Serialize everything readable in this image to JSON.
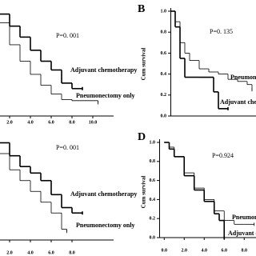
{
  "chart_data": [
    {
      "type": "line",
      "drawstyle": "steps-post",
      "annotations": [
        {
          "text": "P=0. 001"
        }
      ],
      "xlim": [
        0,
        12
      ],
      "ylim": [
        0,
        1
      ],
      "xticks": [
        {
          "value": 2,
          "label": "2.0"
        },
        {
          "value": 4,
          "label": "4.0"
        },
        {
          "value": 6,
          "label": "6.0"
        },
        {
          "value": 8,
          "label": "8.0"
        },
        {
          "value": 10,
          "label": "10.0"
        }
      ],
      "series": [
        {
          "name": "Adjuvant chemotherapy",
          "color": "#000000",
          "width": 1.6,
          "x": [
            0,
            1,
            2,
            3,
            4,
            5,
            6,
            7,
            8,
            9
          ],
          "values": [
            1,
            0.93,
            0.82,
            0.72,
            0.6,
            0.5,
            0.42,
            0.3,
            0.25,
            0.25
          ]
        },
        {
          "name": "Pneumonectomy only",
          "color": "#000000",
          "width": 0.8,
          "x": [
            0,
            1,
            2,
            3,
            4,
            5,
            6,
            7,
            8,
            10.5
          ],
          "values": [
            1,
            0.85,
            0.65,
            0.5,
            0.38,
            0.28,
            0.2,
            0.15,
            0.14,
            0.12
          ]
        }
      ]
    },
    {
      "type": "line",
      "drawstyle": "steps-post",
      "panel_label": "B",
      "ylabel": "Cum survival",
      "annotations": [
        {
          "text": "P=0. 135"
        }
      ],
      "xlim": [
        0,
        10
      ],
      "ylim": [
        0,
        1
      ],
      "yticks": [
        {
          "value": 0,
          "label": "0.0"
        },
        {
          "value": 0.2,
          "label": "0.2"
        },
        {
          "value": 0.4,
          "label": "0.4"
        },
        {
          "value": 0.6,
          "label": "0.6"
        },
        {
          "value": 0.8,
          "label": "0.8"
        },
        {
          "value": 1,
          "label": "1.0"
        }
      ],
      "series": [
        {
          "name": "Pneumonect",
          "color": "#000000",
          "width": 0.8,
          "x": [
            0,
            0.5,
            1,
            1.5,
            2,
            3,
            4,
            5,
            6,
            7,
            8,
            8.5
          ],
          "values": [
            1,
            0.9,
            0.7,
            0.6,
            0.53,
            0.45,
            0.42,
            0.4,
            0.35,
            0.33,
            0.3,
            0.25
          ]
        },
        {
          "name": "Adjuvant chemothe",
          "color": "#000000",
          "width": 1.6,
          "x": [
            0,
            0.5,
            1,
            1.5,
            2,
            3,
            4.5,
            5,
            6
          ],
          "values": [
            1,
            0.85,
            0.55,
            0.37,
            0.37,
            0.37,
            0.23,
            0.07,
            0.07
          ]
        }
      ]
    },
    {
      "type": "line",
      "drawstyle": "steps-post",
      "annotations": [
        {
          "text": "P=0. 001"
        }
      ],
      "xlim": [
        0,
        12
      ],
      "ylim": [
        0,
        1
      ],
      "xticks": [
        {
          "value": 2,
          "label": "2.0"
        },
        {
          "value": 4,
          "label": "4.0"
        },
        {
          "value": 6,
          "label": "6.0"
        },
        {
          "value": 8,
          "label": "8.0"
        }
      ],
      "series": [
        {
          "name": "Adjuvant chemotherapy",
          "color": "#000000",
          "width": 1.6,
          "x": [
            0,
            1,
            2,
            3,
            4,
            5,
            6,
            7,
            8,
            9
          ],
          "values": [
            1,
            0.9,
            0.78,
            0.68,
            0.62,
            0.55,
            0.42,
            0.3,
            0.25,
            0.25
          ]
        },
        {
          "name": "Pneumonectomy only",
          "color": "#000000",
          "width": 0.8,
          "x": [
            0,
            1,
            2,
            3,
            4,
            5,
            6,
            7,
            7.5
          ],
          "values": [
            1,
            0.8,
            0.65,
            0.55,
            0.45,
            0.35,
            0.25,
            0.1,
            0.08
          ]
        }
      ]
    },
    {
      "type": "line",
      "drawstyle": "steps-post",
      "panel_label": "D",
      "ylabel": "Cum survival",
      "annotations": [
        {
          "text": "P=0.924"
        }
      ],
      "xlim": [
        -0.5,
        9.5
      ],
      "ylim": [
        0,
        1
      ],
      "xticks": [
        {
          "value": 0,
          "label": "0.0"
        },
        {
          "value": 2,
          "label": "2.0"
        },
        {
          "value": 4,
          "label": "4.0"
        },
        {
          "value": 6,
          "label": "6.0"
        },
        {
          "value": 8,
          "label": "8.0"
        }
      ],
      "yticks": [
        {
          "value": 0,
          "label": "0.0"
        },
        {
          "value": 0.2,
          "label": "0.2"
        },
        {
          "value": 0.4,
          "label": "0.4"
        },
        {
          "value": 0.6,
          "label": "0.6"
        },
        {
          "value": 0.8,
          "label": "0.8"
        },
        {
          "value": 1,
          "label": "1.0"
        }
      ],
      "series": [
        {
          "name": "Pneumon",
          "color": "#000000",
          "width": 0.8,
          "x": [
            0,
            0.5,
            1,
            2,
            3,
            4,
            5,
            6,
            7,
            8,
            9
          ],
          "values": [
            1,
            0.95,
            0.85,
            0.68,
            0.52,
            0.4,
            0.28,
            0.18,
            0.14,
            0.14,
            0.14
          ]
        },
        {
          "name": "Adjuvant c",
          "color": "#000000",
          "width": 1.6,
          "x": [
            0,
            0.5,
            1,
            2,
            3,
            4,
            5,
            5.5,
            6
          ],
          "values": [
            1,
            0.93,
            0.85,
            0.65,
            0.5,
            0.38,
            0.25,
            0.18,
            0
          ]
        }
      ]
    }
  ]
}
